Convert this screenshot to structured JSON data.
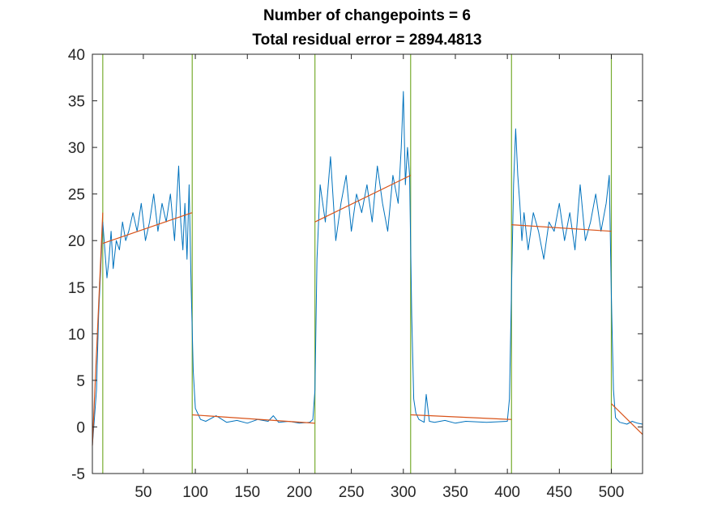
{
  "chart_data": {
    "type": "line",
    "title_lines": [
      "Number of changepoints = 6",
      "Total residual error = 2894.4813"
    ],
    "xlim": [
      1,
      530
    ],
    "ylim": [
      -5,
      40
    ],
    "xticks": [
      50,
      100,
      150,
      200,
      250,
      300,
      350,
      400,
      450,
      500
    ],
    "yticks": [
      -5,
      0,
      5,
      10,
      15,
      20,
      25,
      30,
      35,
      40
    ],
    "grid": false,
    "colors": {
      "signal": "#0072BD",
      "fit": "#D95319",
      "changepoint": "#77AC30",
      "axes": "#262626"
    },
    "changepoints": [
      11,
      97,
      215,
      307,
      404,
      500
    ],
    "segments_fit": [
      {
        "x": [
          1,
          11
        ],
        "y": [
          -2,
          23
        ]
      },
      {
        "x": [
          11,
          97
        ],
        "y": [
          19.7,
          23.0
        ]
      },
      {
        "x": [
          97,
          215
        ],
        "y": [
          1.3,
          0.4
        ]
      },
      {
        "x": [
          215,
          307
        ],
        "y": [
          22.0,
          27.0
        ]
      },
      {
        "x": [
          307,
          404
        ],
        "y": [
          1.3,
          0.8
        ]
      },
      {
        "x": [
          404,
          500
        ],
        "y": [
          21.7,
          21.0
        ]
      },
      {
        "x": [
          500,
          530
        ],
        "y": [
          2.5,
          -0.8
        ]
      }
    ],
    "series": [
      {
        "x": [
          1,
          3,
          5,
          7,
          9,
          11,
          13,
          15,
          17,
          19,
          21,
          24,
          27,
          30,
          33,
          36,
          40,
          44,
          48,
          52,
          56,
          60,
          64,
          68,
          72,
          76,
          80,
          84,
          86,
          88,
          90,
          92,
          94,
          96,
          98,
          100,
          105,
          110,
          120,
          130,
          140,
          150,
          160,
          170,
          175,
          180,
          190,
          200,
          210,
          213,
          215,
          217,
          220,
          225,
          230,
          235,
          240,
          245,
          250,
          255,
          260,
          265,
          270,
          275,
          280,
          285,
          290,
          295,
          298,
          300,
          302,
          304,
          306,
          308,
          310,
          312,
          315,
          320,
          322,
          325,
          330,
          340,
          350,
          360,
          380,
          400,
          402,
          404,
          406,
          408,
          410,
          412,
          414,
          416,
          418,
          420,
          425,
          430,
          435,
          440,
          445,
          450,
          455,
          460,
          465,
          470,
          475,
          480,
          485,
          490,
          495,
          498,
          500,
          502,
          504,
          508,
          515,
          520,
          525,
          530
        ],
        "y": [
          -2,
          1,
          4,
          12,
          17,
          22,
          19,
          16,
          18,
          21,
          17,
          20,
          19,
          22,
          20,
          21,
          23,
          21,
          24,
          20,
          22,
          25,
          21,
          24,
          22,
          25,
          20,
          28,
          22,
          19,
          24,
          18,
          26,
          15,
          6,
          2,
          0.8,
          0.6,
          1.2,
          0.5,
          0.7,
          0.4,
          0.8,
          0.6,
          1.2,
          0.5,
          0.6,
          0.4,
          0.5,
          0.8,
          4,
          18,
          26,
          22,
          29,
          20,
          24,
          27,
          21,
          25,
          23,
          26,
          22,
          28,
          24,
          21,
          27,
          24,
          30,
          36,
          26,
          30,
          27,
          12,
          3,
          1.5,
          0.8,
          0.5,
          3.5,
          0.6,
          0.5,
          0.7,
          0.4,
          0.6,
          0.5,
          0.6,
          3,
          15,
          26,
          32,
          27,
          24,
          20,
          23,
          21,
          19,
          23,
          21,
          18,
          22,
          21,
          24,
          20,
          23,
          19,
          26,
          20,
          22,
          25,
          21,
          24,
          27,
          14,
          4,
          1,
          0.5,
          0.3,
          0.6,
          0.4,
          0.3
        ]
      }
    ]
  }
}
